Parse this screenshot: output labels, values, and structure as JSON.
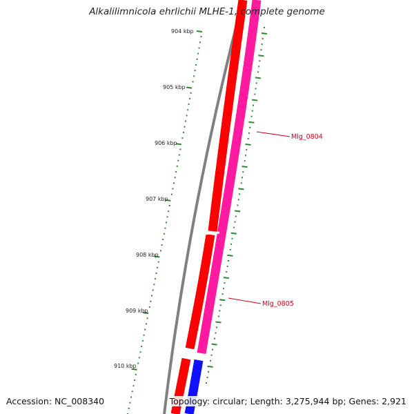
{
  "title": "Alkalilimnicola ehrlichii MLHE-1, complete genome",
  "footer": {
    "accession": "Accession: NC_008340",
    "summary": "Topology: circular; Length: 3,275,944 bp; Genes: 2,921"
  },
  "scale_labels": [
    "904 kbp",
    "905 kbp",
    "906 kbp",
    "907 kbp",
    "908 kbp",
    "909 kbp",
    "910 kbp"
  ],
  "gene_labels": [
    "Mlg_0804",
    "Mlg_0805"
  ],
  "colors": {
    "backbone": "#808080",
    "forward_gene": "#ff0000",
    "reverse_gene": "#ff1aa0",
    "blue_feature": "#1010ff",
    "tick": "#2a8a2a",
    "gene_label": "#d0021b"
  }
}
